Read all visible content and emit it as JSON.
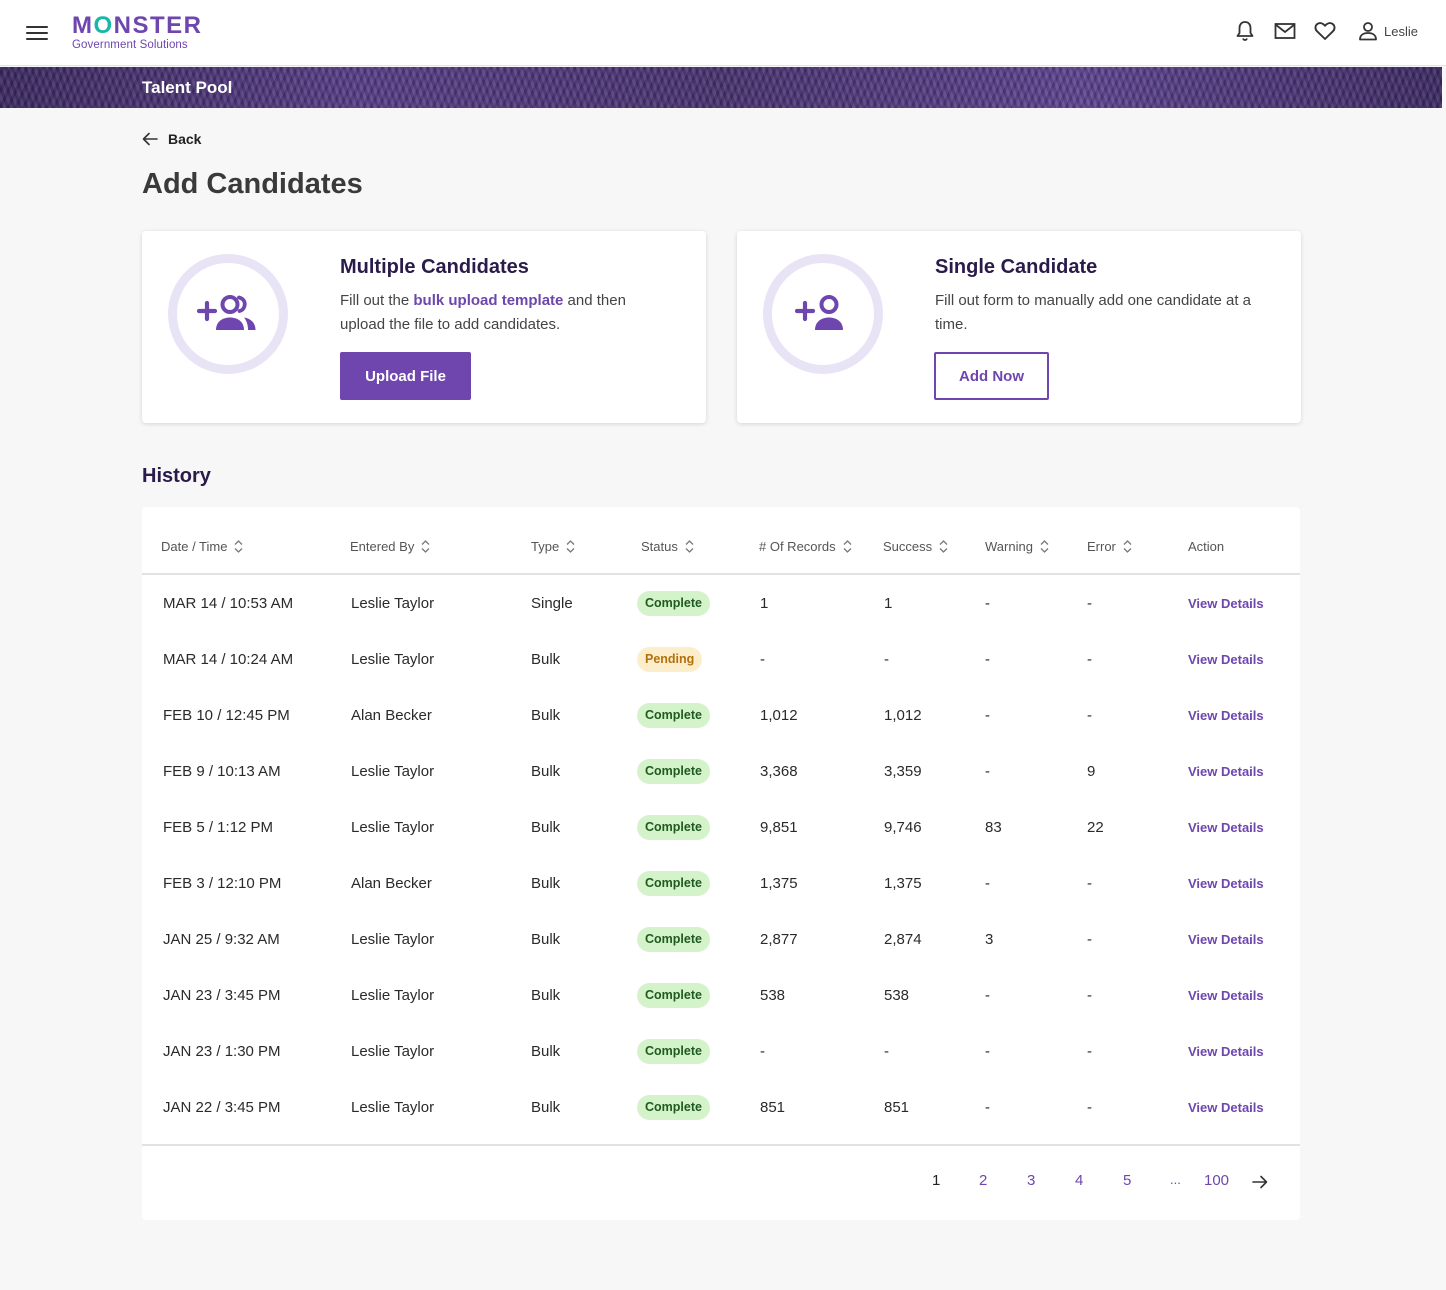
{
  "header": {
    "logo_word": "MONSTER",
    "logo_sub": "Government Solutions",
    "user_name": "Leslie",
    "icons": [
      "menu-icon",
      "bell-icon",
      "mail-icon",
      "heart-icon",
      "user-icon"
    ]
  },
  "banner": {
    "title": "Talent Pool"
  },
  "page": {
    "back_label": "Back",
    "title": "Add Candidates"
  },
  "cards": {
    "multiple": {
      "title": "Multiple Candidates",
      "desc_before": "Fill out the ",
      "desc_link": "bulk upload template",
      "desc_after": " and then upload the file to add candidates.",
      "button": "Upload File",
      "icon": "add-group-icon"
    },
    "single": {
      "title": "Single Candidate",
      "desc": "Fill out form to manually add one candidate at a time.",
      "button": "Add Now",
      "icon": "add-person-icon"
    }
  },
  "history": {
    "title": "History",
    "columns": [
      "Date / Time",
      "Entered By",
      "Type",
      "Status",
      "# Of Records",
      "Success",
      "Warning",
      "Error",
      "Action"
    ],
    "rows": [
      {
        "date": "MAR 14 / 10:53 AM",
        "by": "Leslie Taylor",
        "type": "Single",
        "status": "Complete",
        "records": "1",
        "success": "1",
        "warning": "-",
        "error": "-",
        "action": "View Details"
      },
      {
        "date": "MAR 14 / 10:24 AM",
        "by": "Leslie Taylor",
        "type": "Bulk",
        "status": "Pending",
        "records": "-",
        "success": "-",
        "warning": "-",
        "error": "-",
        "action": "View Details"
      },
      {
        "date": "FEB 10 / 12:45 PM",
        "by": "Alan Becker",
        "type": "Bulk",
        "status": "Complete",
        "records": "1,012",
        "success": "1,012",
        "warning": "-",
        "error": "-",
        "action": "View Details"
      },
      {
        "date": "FEB 9 / 10:13 AM",
        "by": "Leslie Taylor",
        "type": "Bulk",
        "status": "Complete",
        "records": "3,368",
        "success": "3,359",
        "warning": "-",
        "error": "9",
        "action": "View Details"
      },
      {
        "date": "FEB 5 / 1:12 PM",
        "by": "Leslie Taylor",
        "type": "Bulk",
        "status": "Complete",
        "records": "9,851",
        "success": "9,746",
        "warning": "83",
        "error": "22",
        "action": "View Details"
      },
      {
        "date": "FEB 3 / 12:10 PM",
        "by": "Alan Becker",
        "type": "Bulk",
        "status": "Complete",
        "records": "1,375",
        "success": "1,375",
        "warning": "-",
        "error": "-",
        "action": "View Details"
      },
      {
        "date": "JAN 25 / 9:32 AM",
        "by": "Leslie Taylor",
        "type": "Bulk",
        "status": "Complete",
        "records": "2,877",
        "success": "2,874",
        "warning": "3",
        "error": "-",
        "action": "View Details"
      },
      {
        "date": "JAN 23 / 3:45 PM",
        "by": "Leslie Taylor",
        "type": "Bulk",
        "status": "Complete",
        "records": "538",
        "success": "538",
        "warning": "-",
        "error": "-",
        "action": "View Details"
      },
      {
        "date": "JAN 23 / 1:30 PM",
        "by": "Leslie Taylor",
        "type": "Bulk",
        "status": "Complete",
        "records": "-",
        "success": "-",
        "warning": "-",
        "error": "-",
        "action": "View Details"
      },
      {
        "date": "JAN 22 / 3:45 PM",
        "by": "Leslie Taylor",
        "type": "Bulk",
        "status": "Complete",
        "records": "851",
        "success": "851",
        "warning": "-",
        "error": "-",
        "action": "View Details"
      }
    ]
  },
  "pagination": {
    "pages": [
      "1",
      "2",
      "3",
      "4",
      "5"
    ],
    "ellipsis": "...",
    "last": "100",
    "current": "1",
    "next_icon": "arrow-right-icon"
  },
  "colors": {
    "brand": "#6e46ae",
    "accent": "#1ab7a6",
    "complete_bg": "#d4f3cb",
    "pending_bg": "#fdeecb"
  }
}
